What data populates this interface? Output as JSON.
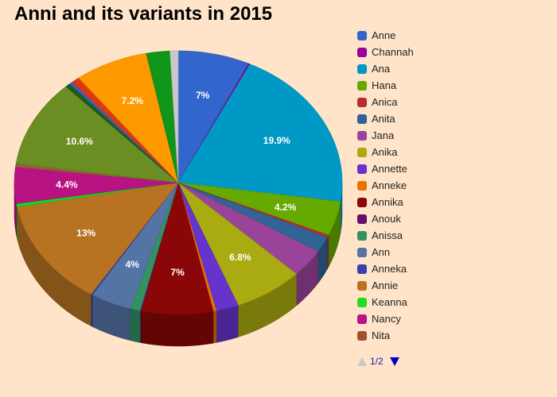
{
  "chart_data": {
    "type": "pie",
    "title": "Anni and its variants in 2015",
    "slices": [
      {
        "label": "Anne",
        "value": 7.0,
        "color": "#3366cc",
        "data_label": "7%"
      },
      {
        "label": "Channah",
        "value": 0.15,
        "color": "#990099",
        "data_label": ""
      },
      {
        "label": "Ana",
        "value": 19.9,
        "color": "#0099c6",
        "data_label": "19.9%"
      },
      {
        "label": "Hana",
        "value": 4.2,
        "color": "#66aa00",
        "data_label": "4.2%"
      },
      {
        "label": "Anica",
        "value": 0.3,
        "color": "#b82e2e",
        "data_label": ""
      },
      {
        "label": "Anita",
        "value": 1.9,
        "color": "#316395",
        "data_label": ""
      },
      {
        "label": "Jana",
        "value": 3.4,
        "color": "#994499",
        "data_label": ""
      },
      {
        "label": "Anika",
        "value": 6.8,
        "color": "#aaaa11",
        "data_label": "6.8%"
      },
      {
        "label": "Annette",
        "value": 2.2,
        "color": "#6633cc",
        "data_label": ""
      },
      {
        "label": "Anneke",
        "value": 0.3,
        "color": "#e67300",
        "data_label": ""
      },
      {
        "label": "Annika",
        "value": 7.0,
        "color": "#8b0707",
        "data_label": "7%"
      },
      {
        "label": "Anouk",
        "value": 0.1,
        "color": "#651067",
        "data_label": ""
      },
      {
        "label": "Anissa",
        "value": 1.0,
        "color": "#329262",
        "data_label": ""
      },
      {
        "label": "Ann",
        "value": 4.0,
        "color": "#5574a6",
        "data_label": "4%"
      },
      {
        "label": "Anneka",
        "value": 0.15,
        "color": "#3b3eac",
        "data_label": ""
      },
      {
        "label": "Annie",
        "value": 13.0,
        "color": "#b77322",
        "data_label": "13%"
      },
      {
        "label": "Keanna",
        "value": 0.4,
        "color": "#16d620",
        "data_label": ""
      },
      {
        "label": "Nancy",
        "value": 4.4,
        "color": "#b91383",
        "data_label": "4.4%"
      },
      {
        "label": "Nita",
        "value": 0.4,
        "color": "#9a5b3c",
        "data_label": ""
      },
      {
        "label": "",
        "value": 10.6,
        "color": "#6b8e23",
        "data_label": "10.6%"
      },
      {
        "label": "",
        "value": 0.5,
        "color": "#1f5a1f",
        "data_label": ""
      },
      {
        "label": "",
        "value": 0.3,
        "color": "#3366cc",
        "data_label": ""
      },
      {
        "label": "",
        "value": 0.8,
        "color": "#dc3912",
        "data_label": ""
      },
      {
        "label": "",
        "value": 7.2,
        "color": "#ff9900",
        "data_label": "7.2%"
      },
      {
        "label": "",
        "value": 2.3,
        "color": "#109618",
        "data_label": ""
      },
      {
        "label": "",
        "value": 0.8,
        "color": "#c9c9c9",
        "data_label": ""
      }
    ],
    "legend_position": "right",
    "style": "3d-pie"
  },
  "legend": {
    "entries": [
      {
        "label": "Anne",
        "color": "#3366cc"
      },
      {
        "label": "Channah",
        "color": "#990099"
      },
      {
        "label": "Ana",
        "color": "#0099c6"
      },
      {
        "label": "Hana",
        "color": "#66aa00"
      },
      {
        "label": "Anica",
        "color": "#b82e2e"
      },
      {
        "label": "Anita",
        "color": "#316395"
      },
      {
        "label": "Jana",
        "color": "#994499"
      },
      {
        "label": "Anika",
        "color": "#aaaa11"
      },
      {
        "label": "Annette",
        "color": "#6633cc"
      },
      {
        "label": "Anneke",
        "color": "#e67300"
      },
      {
        "label": "Annika",
        "color": "#8b0707"
      },
      {
        "label": "Anouk",
        "color": "#651067"
      },
      {
        "label": "Anissa",
        "color": "#329262"
      },
      {
        "label": "Ann",
        "color": "#5574a6"
      },
      {
        "label": "Anneka",
        "color": "#3b3eac"
      },
      {
        "label": "Annie",
        "color": "#b77322"
      },
      {
        "label": "Keanna",
        "color": "#22dd22"
      },
      {
        "label": "Nancy",
        "color": "#b91383"
      },
      {
        "label": "Nita",
        "color": "#a0522d"
      }
    ],
    "pager": {
      "page_text": "1/2",
      "prev_icon": "triangle-up-icon",
      "next_icon": "triangle-down-icon"
    }
  }
}
